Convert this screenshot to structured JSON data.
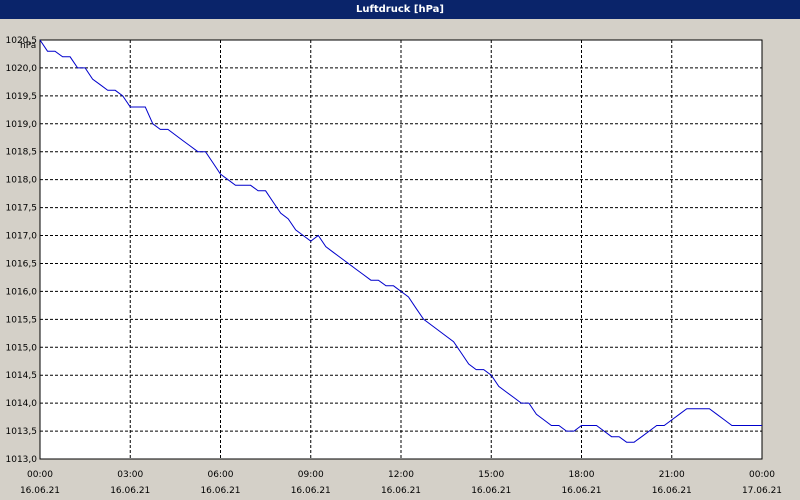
{
  "window": {
    "title": "Luftdruck [hPa]"
  },
  "chart_data": {
    "type": "line",
    "title": "Luftdruck [hPa]",
    "ylabel": "hPa",
    "xlabel": "",
    "grid": true,
    "ylim": [
      1013.0,
      1020.5
    ],
    "yticks": [
      "1020,5",
      "1020,0",
      "1019,5",
      "1019,0",
      "1018,5",
      "1018,0",
      "1017,5",
      "1017,0",
      "1016,5",
      "1016,0",
      "1015,5",
      "1015,0",
      "1014,5",
      "1014,0",
      "1013,5",
      "1013,0"
    ],
    "ytick_values": [
      1020.5,
      1020.0,
      1019.5,
      1019.0,
      1018.5,
      1018.0,
      1017.5,
      1017.0,
      1016.5,
      1016.0,
      1015.5,
      1015.0,
      1014.5,
      1014.0,
      1013.5,
      1013.0
    ],
    "xlim_hours": [
      0,
      24
    ],
    "xticks": [
      {
        "hour": 0,
        "time": "00:00",
        "date": "16.06.21"
      },
      {
        "hour": 3,
        "time": "03:00",
        "date": "16.06.21"
      },
      {
        "hour": 6,
        "time": "06:00",
        "date": "16.06.21"
      },
      {
        "hour": 9,
        "time": "09:00",
        "date": "16.06.21"
      },
      {
        "hour": 12,
        "time": "12:00",
        "date": "16.06.21"
      },
      {
        "hour": 15,
        "time": "15:00",
        "date": "16.06.21"
      },
      {
        "hour": 18,
        "time": "18:00",
        "date": "16.06.21"
      },
      {
        "hour": 21,
        "time": "21:00",
        "date": "16.06.21"
      },
      {
        "hour": 24,
        "time": "00:00",
        "date": "17.06.21"
      }
    ],
    "colors": {
      "line": "#0000cc",
      "grid": "#000000",
      "plot_bg": "#ffffff",
      "frame_bg": "#d4d0c8",
      "titlebar": "#0a246a"
    },
    "series": [
      {
        "x": [
          0,
          0.25,
          0.5,
          0.75,
          1.0,
          1.25,
          1.5,
          1.75,
          2.0,
          2.25,
          2.5,
          2.75,
          3.0,
          3.25,
          3.5,
          3.75,
          4.0,
          4.25,
          4.5,
          4.75,
          5.0,
          5.25,
          5.5,
          5.75,
          6.0,
          6.25,
          6.5,
          6.75,
          7.0,
          7.25,
          7.5,
          7.75,
          8.0,
          8.25,
          8.5,
          8.75,
          9.0,
          9.25,
          9.5,
          9.75,
          10.0,
          10.25,
          10.5,
          10.75,
          11.0,
          11.25,
          11.5,
          11.75,
          12.0,
          12.25,
          12.5,
          12.75,
          13.0,
          13.25,
          13.5,
          13.75,
          14.0,
          14.25,
          14.5,
          14.75,
          15.0,
          15.25,
          15.5,
          15.75,
          16.0,
          16.25,
          16.5,
          16.75,
          17.0,
          17.25,
          17.5,
          17.75,
          18.0,
          18.25,
          18.5,
          18.75,
          19.0,
          19.25,
          19.5,
          19.75,
          20.0,
          20.25,
          20.5,
          20.75,
          21.0,
          21.25,
          21.5,
          21.75,
          22.0,
          22.25,
          22.5,
          22.75,
          23.0,
          23.25,
          23.5,
          23.75,
          24.0
        ],
        "y": [
          1020.5,
          1020.3,
          1020.3,
          1020.2,
          1020.2,
          1020.0,
          1020.0,
          1019.8,
          1019.7,
          1019.6,
          1019.6,
          1019.5,
          1019.3,
          1019.3,
          1019.3,
          1019.0,
          1018.9,
          1018.9,
          1018.8,
          1018.7,
          1018.6,
          1018.5,
          1018.5,
          1018.3,
          1018.1,
          1018.0,
          1017.9,
          1017.9,
          1017.9,
          1017.8,
          1017.8,
          1017.6,
          1017.4,
          1017.3,
          1017.1,
          1017.0,
          1016.9,
          1017.0,
          1016.8,
          1016.7,
          1016.6,
          1016.5,
          1016.4,
          1016.3,
          1016.2,
          1016.2,
          1016.1,
          1016.1,
          1016.0,
          1015.9,
          1015.7,
          1015.5,
          1015.4,
          1015.3,
          1015.2,
          1015.1,
          1014.9,
          1014.7,
          1014.6,
          1014.6,
          1014.5,
          1014.3,
          1014.2,
          1014.1,
          1014.0,
          1014.0,
          1013.8,
          1013.7,
          1013.6,
          1013.6,
          1013.5,
          1013.5,
          1013.6,
          1013.6,
          1013.6,
          1013.5,
          1013.4,
          1013.4,
          1013.3,
          1013.3,
          1013.4,
          1013.5,
          1013.6,
          1013.6,
          1013.7,
          1013.8,
          1013.9,
          1013.9,
          1013.9,
          1013.9,
          1013.8,
          1013.7,
          1013.6,
          1013.6,
          1013.6,
          1013.6,
          1013.6
        ]
      }
    ]
  }
}
